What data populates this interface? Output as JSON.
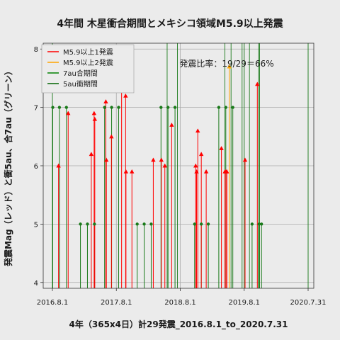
{
  "chart_data": {
    "type": "stem",
    "title": "4年間 木星衝合期間とメキシコ領域M5.9以上発震",
    "xlabel": "4年（365x4日）計29発震_2016.8.1_to_2020.7.31",
    "ylabel": "発震Mag（レッド）と衝5au、合7au（グリーン）",
    "annotation": "発震比率：19/29＝66%",
    "x_ticks": [
      "2016.8.1",
      "2017.8.1",
      "2018.8.1",
      "2019.8.1",
      "2020.7.31"
    ],
    "y_ticks": [
      4,
      5,
      6,
      7,
      8
    ],
    "xlim": [
      0,
      1460
    ],
    "ylim": [
      3.9,
      8.1
    ],
    "grid": true,
    "legend_position": "top-left",
    "legend": [
      {
        "label": "M5.9以上1発震",
        "color": "#ff0000"
      },
      {
        "label": "M5.9以上2発震",
        "color": "#ffa500"
      },
      {
        "label": "7au合期間",
        "color": "#008000"
      },
      {
        "label": "5au衝期間",
        "color": "#006400"
      }
    ],
    "colors": {
      "eq1": "#ff0000",
      "eq2": "#ffa500",
      "conj": "#1a7a1a",
      "opp": "#1a7a1a",
      "background": "#ebebeb",
      "grid": "#ffffff"
    },
    "long_green_lines_day": [
      0,
      655,
      714,
      985,
      1020,
      1083,
      1095,
      1125,
      1177,
      1183,
      1460
    ],
    "earthquakes": [
      {
        "day": 35,
        "mag": 6.0
      },
      {
        "day": 90,
        "mag": 6.9
      },
      {
        "day": 222,
        "mag": 6.2
      },
      {
        "day": 238,
        "mag": 6.9
      },
      {
        "day": 242,
        "mag": 6.8
      },
      {
        "day": 305,
        "mag": 7.1
      },
      {
        "day": 308,
        "mag": 6.1
      },
      {
        "day": 337,
        "mag": 6.5
      },
      {
        "day": 395,
        "mag": 7.5
      },
      {
        "day": 418,
        "mag": 7.2
      },
      {
        "day": 420,
        "mag": 5.9
      },
      {
        "day": 454,
        "mag": 5.9
      },
      {
        "day": 576,
        "mag": 6.1
      },
      {
        "day": 622,
        "mag": 6.1
      },
      {
        "day": 642,
        "mag": 6.0
      },
      {
        "day": 681,
        "mag": 6.7
      },
      {
        "day": 818,
        "mag": 6.0
      },
      {
        "day": 823,
        "mag": 5.9
      },
      {
        "day": 830,
        "mag": 6.6
      },
      {
        "day": 850,
        "mag": 6.2
      },
      {
        "day": 878,
        "mag": 5.9
      },
      {
        "day": 965,
        "mag": 6.3
      },
      {
        "day": 985,
        "mag": 5.9
      },
      {
        "day": 991,
        "mag": 5.9
      },
      {
        "day": 996,
        "mag": 5.9
      },
      {
        "day": 1010,
        "mag": 7.7,
        "double": true
      },
      {
        "day": 1100,
        "mag": 6.1
      },
      {
        "day": 1170,
        "mag": 7.4
      }
    ],
    "green_markers": [
      {
        "day": 2,
        "mag": 7.0
      },
      {
        "day": 40,
        "mag": 7.0
      },
      {
        "day": 80,
        "mag": 7.0
      },
      {
        "day": 160,
        "mag": 5.0
      },
      {
        "day": 200,
        "mag": 5.0
      },
      {
        "day": 240,
        "mag": 5.0
      },
      {
        "day": 298,
        "mag": 7.0
      },
      {
        "day": 338,
        "mag": 7.0
      },
      {
        "day": 378,
        "mag": 7.0
      },
      {
        "day": 484,
        "mag": 5.0
      },
      {
        "day": 524,
        "mag": 5.0
      },
      {
        "day": 564,
        "mag": 5.0
      },
      {
        "day": 620,
        "mag": 7.0
      },
      {
        "day": 660,
        "mag": 7.0
      },
      {
        "day": 700,
        "mag": 7.0
      },
      {
        "day": 812,
        "mag": 5.0
      },
      {
        "day": 850,
        "mag": 5.0
      },
      {
        "day": 890,
        "mag": 5.0
      },
      {
        "day": 950,
        "mag": 7.0
      },
      {
        "day": 990,
        "mag": 7.0
      },
      {
        "day": 1030,
        "mag": 7.0
      },
      {
        "day": 1140,
        "mag": 5.0
      },
      {
        "day": 1180,
        "mag": 5.0
      },
      {
        "day": 1194,
        "mag": 5.0
      }
    ]
  }
}
